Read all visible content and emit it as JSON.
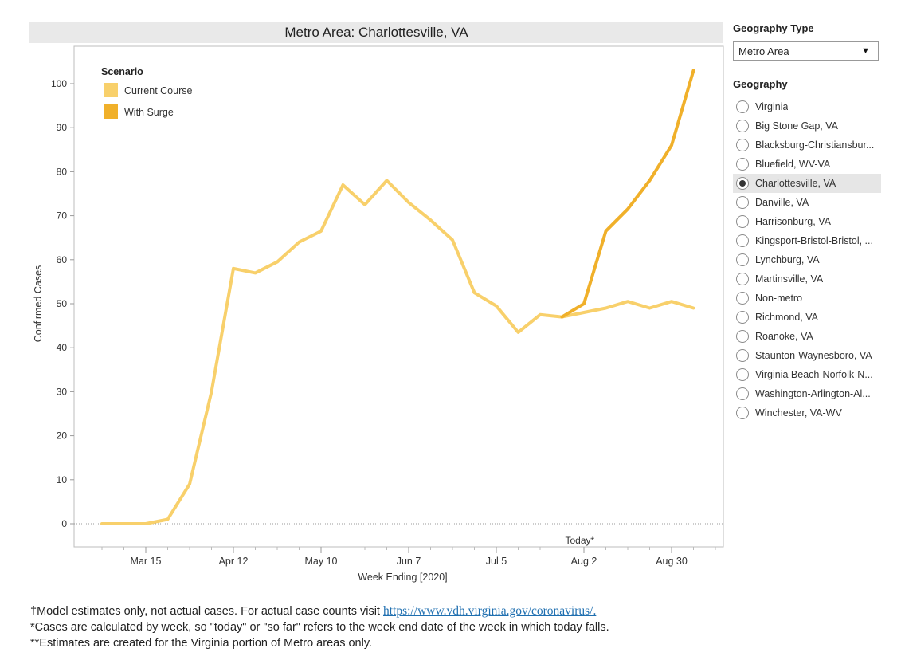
{
  "chart_header": {
    "title": "Metro Area: Charlottesville, VA"
  },
  "chart_data": {
    "type": "line",
    "title": "Metro Area: Charlottesville, VA",
    "xlabel": "Week Ending [2020]",
    "ylabel": "Confirmed Cases",
    "ylim": [
      0,
      100
    ],
    "yticks": [
      0,
      10,
      20,
      30,
      40,
      50,
      60,
      70,
      80,
      90,
      100
    ],
    "xticks": [
      {
        "label": "Mar 15",
        "date": "2020-03-15"
      },
      {
        "label": "Apr 12",
        "date": "2020-04-12"
      },
      {
        "label": "May 10",
        "date": "2020-05-10"
      },
      {
        "label": "Jun 7",
        "date": "2020-06-07"
      },
      {
        "label": "Jul 5",
        "date": "2020-07-05"
      },
      {
        "label": "Aug 2",
        "date": "2020-08-02"
      },
      {
        "label": "Aug 30",
        "date": "2020-08-30"
      }
    ],
    "legend": {
      "title": "Scenario",
      "placement": "top-left",
      "items": [
        {
          "name": "Current Course",
          "color": "#f8d06b"
        },
        {
          "name": "With Surge",
          "color": "#f0b02a"
        }
      ]
    },
    "reference_line": {
      "label": "Today*",
      "date": "2020-07-26"
    },
    "series": [
      {
        "name": "Current Course",
        "color": "#f8d06b",
        "x": [
          "2020-03-01",
          "2020-03-08",
          "2020-03-15",
          "2020-03-22",
          "2020-03-29",
          "2020-04-05",
          "2020-04-12",
          "2020-04-19",
          "2020-04-26",
          "2020-05-03",
          "2020-05-10",
          "2020-05-17",
          "2020-05-24",
          "2020-05-31",
          "2020-06-07",
          "2020-06-14",
          "2020-06-21",
          "2020-06-28",
          "2020-07-05",
          "2020-07-12",
          "2020-07-19",
          "2020-07-26",
          "2020-08-02",
          "2020-08-09",
          "2020-08-16",
          "2020-08-23",
          "2020-08-30",
          "2020-09-06"
        ],
        "y": [
          0,
          0,
          0,
          1,
          9,
          30,
          58,
          57,
          59.5,
          64,
          66.5,
          77,
          72.5,
          78,
          73,
          69,
          64.5,
          52.5,
          49.5,
          43.5,
          47.5,
          47,
          48,
          49,
          50.5,
          49,
          50.5,
          49
        ]
      },
      {
        "name": "With Surge",
        "color": "#f0b02a",
        "x": [
          "2020-07-26",
          "2020-08-02",
          "2020-08-09",
          "2020-08-16",
          "2020-08-23",
          "2020-08-30",
          "2020-09-06"
        ],
        "y": [
          47,
          50,
          66.5,
          71.5,
          78,
          86,
          103
        ]
      }
    ]
  },
  "sidebar": {
    "geography_type_label": "Geography Type",
    "geography_type_value": "Metro Area",
    "geography_label": "Geography",
    "options": [
      {
        "label": "Virginia",
        "selected": false
      },
      {
        "label": "Big Stone Gap, VA",
        "selected": false
      },
      {
        "label": "Blacksburg-Christiansbur...",
        "selected": false
      },
      {
        "label": "Bluefield, WV-VA",
        "selected": false
      },
      {
        "label": "Charlottesville, VA",
        "selected": true
      },
      {
        "label": "Danville, VA",
        "selected": false
      },
      {
        "label": "Harrisonburg, VA",
        "selected": false
      },
      {
        "label": "Kingsport-Bristol-Bristol, ...",
        "selected": false
      },
      {
        "label": "Lynchburg, VA",
        "selected": false
      },
      {
        "label": "Martinsville, VA",
        "selected": false
      },
      {
        "label": "Non-metro",
        "selected": false
      },
      {
        "label": "Richmond, VA",
        "selected": false
      },
      {
        "label": "Roanoke, VA",
        "selected": false
      },
      {
        "label": "Staunton-Waynesboro, VA",
        "selected": false
      },
      {
        "label": "Virginia Beach-Norfolk-N...",
        "selected": false
      },
      {
        "label": "Washington-Arlington-Al...",
        "selected": false
      },
      {
        "label": "Winchester, VA-WV",
        "selected": false
      }
    ]
  },
  "footnotes": {
    "line1_text": "†Model estimates only, not actual cases. For actual case counts visit ",
    "line1_link": "https://www.vdh.virginia.gov/coronavirus/.",
    "line2": "*Cases are calculated by week, so \"today\" or \"so far\" refers to the week end date of the week in which today falls.",
    "line3": "**Estimates are created for the Virginia portion of Metro areas only."
  }
}
